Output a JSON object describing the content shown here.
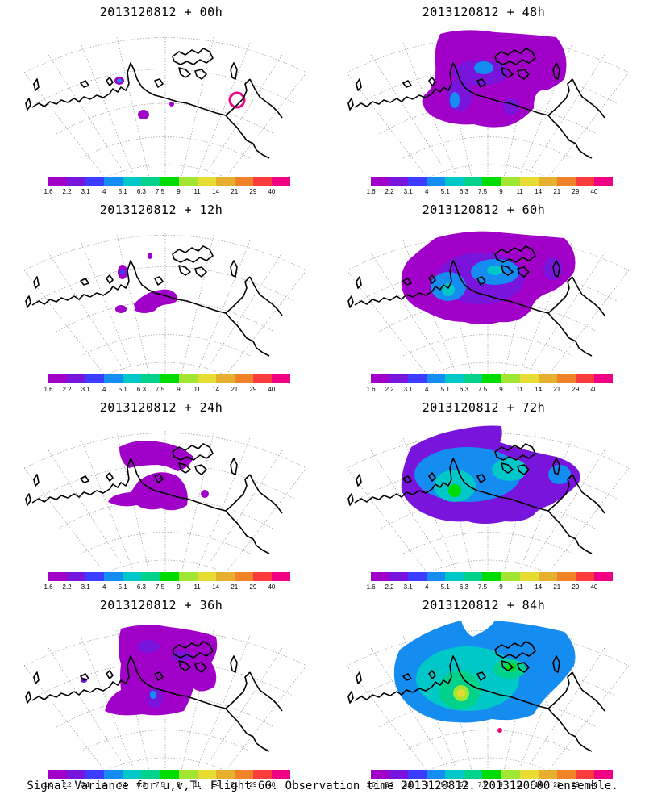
{
  "title": "Signal Variance for u,v,T. Flight 66. Observation time 2013120812. 2013120600 ensemble.",
  "colorbar": {
    "labels": [
      "1.6",
      "2.2",
      "3.1",
      "4",
      "5.1",
      "6.3",
      "7.5",
      "9",
      "11",
      "14",
      "21",
      "29",
      "40"
    ],
    "colors": [
      "#a000c8",
      "#7814dc",
      "#3c3cff",
      "#148cf0",
      "#00c8c8",
      "#00d28c",
      "#00dc00",
      "#a0e632",
      "#e6dc32",
      "#e6af2d",
      "#f08228",
      "#fa3c3c",
      "#f00082"
    ]
  },
  "panels": [
    {
      "label": "2013120812 + 00h",
      "column": "left",
      "row": 1
    },
    {
      "label": "2013120812 + 12h",
      "column": "left",
      "row": 2
    },
    {
      "label": "2013120812 + 24h",
      "column": "left",
      "row": 3
    },
    {
      "label": "2013120812 + 36h",
      "column": "left",
      "row": 4
    },
    {
      "label": "2013120812 + 48h",
      "column": "right",
      "row": 1
    },
    {
      "label": "2013120812 + 60h",
      "column": "right",
      "row": 2
    },
    {
      "label": "2013120812 + 72h",
      "column": "right",
      "row": 3
    },
    {
      "label": "2013120812 + 84h",
      "column": "right",
      "row": 4
    }
  ]
}
